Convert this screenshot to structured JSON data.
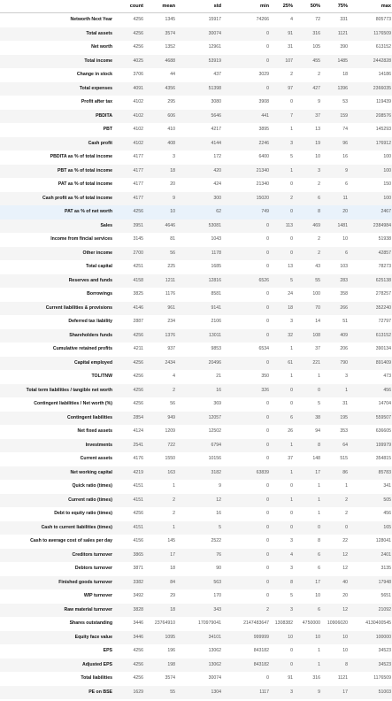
{
  "columns": [
    "count",
    "mean",
    "std",
    "min",
    "25%",
    "50%",
    "75%",
    "max"
  ],
  "rows": [
    {
      "label": "Networth Next Year",
      "v": [
        "4256",
        "1345",
        "15917",
        "74266",
        "4",
        "72",
        "331",
        "805773"
      ]
    },
    {
      "label": "Total assets",
      "v": [
        "4256",
        "3574",
        "30074",
        "0",
        "91",
        "316",
        "1121",
        "1176509"
      ]
    },
    {
      "label": "Net worth",
      "v": [
        "4256",
        "1352",
        "12961",
        "0",
        "31",
        "105",
        "390",
        "613152"
      ]
    },
    {
      "label": "Total income",
      "v": [
        "4025",
        "4688",
        "53919",
        "0",
        "107",
        "455",
        "1485",
        "2442828"
      ]
    },
    {
      "label": "Change in stock",
      "v": [
        "3706",
        "44",
        "437",
        "3029",
        "2",
        "2",
        "18",
        "14186"
      ]
    },
    {
      "label": "Total expenses",
      "v": [
        "4091",
        "4356",
        "51398",
        "0",
        "97",
        "427",
        "1396",
        "2366035"
      ]
    },
    {
      "label": "Profit after tax",
      "v": [
        "4102",
        "295",
        "3080",
        "3908",
        "0",
        "9",
        "53",
        "119439"
      ]
    },
    {
      "label": "PBDITA",
      "v": [
        "4102",
        "606",
        "5646",
        "441",
        "7",
        "37",
        "159",
        "208576"
      ]
    },
    {
      "label": "PBT",
      "v": [
        "4102",
        "410",
        "4217",
        "3895",
        "1",
        "13",
        "74",
        "145293"
      ]
    },
    {
      "label": "Cash profit",
      "v": [
        "4102",
        "408",
        "4144",
        "2246",
        "3",
        "19",
        "96",
        "176912"
      ]
    },
    {
      "label": "PBDITA as % of total income",
      "v": [
        "4177",
        "3",
        "172",
        "6400",
        "5",
        "10",
        "16",
        "100"
      ]
    },
    {
      "label": "PBT as % of total income",
      "v": [
        "4177",
        "18",
        "420",
        "21340",
        "1",
        "3",
        "9",
        "100"
      ]
    },
    {
      "label": "PAT as % of total income",
      "v": [
        "4177",
        "20",
        "424",
        "21340",
        "0",
        "2",
        "6",
        "150"
      ]
    },
    {
      "label": "Cash profit as % of total income",
      "v": [
        "4177",
        "9",
        "300",
        "15020",
        "2",
        "6",
        "11",
        "100"
      ]
    },
    {
      "label": "PAT as % of net worth",
      "v": [
        "4256",
        "10",
        "62",
        "749",
        "0",
        "8",
        "20",
        "2467"
      ]
    },
    {
      "label": "Sales",
      "v": [
        "3951",
        "4646",
        "53081",
        "0",
        "113",
        "469",
        "1481",
        "2384984"
      ]
    },
    {
      "label": "Income from fincial services",
      "v": [
        "3145",
        "81",
        "1043",
        "0",
        "0",
        "2",
        "10",
        "51938"
      ]
    },
    {
      "label": "Other income",
      "v": [
        "2700",
        "56",
        "1178",
        "0",
        "0",
        "2",
        "6",
        "42857"
      ]
    },
    {
      "label": "Total capital",
      "v": [
        "4251",
        "225",
        "1685",
        "0",
        "13",
        "43",
        "103",
        "78273"
      ]
    },
    {
      "label": "Reserves and funds",
      "v": [
        "4158",
        "1211",
        "12816",
        "6526",
        "5",
        "55",
        "283",
        "625138"
      ]
    },
    {
      "label": "Borrowings",
      "v": [
        "3825",
        "1176",
        "8581",
        "0",
        "24",
        "100",
        "358",
        "278257"
      ]
    },
    {
      "label": "Current liabilities & provisions",
      "v": [
        "4146",
        "961",
        "9141",
        "0",
        "18",
        "70",
        "266",
        "352240"
      ]
    },
    {
      "label": "Deferred tax liability",
      "v": [
        "2887",
        "234",
        "2106",
        "0",
        "3",
        "14",
        "51",
        "72797"
      ]
    },
    {
      "label": "Shareholders funds",
      "v": [
        "4256",
        "1376",
        "13011",
        "0",
        "32",
        "108",
        "409",
        "613152"
      ]
    },
    {
      "label": "Cumulative retained profits",
      "v": [
        "4211",
        "937",
        "9853",
        "6534",
        "1",
        "37",
        "206",
        "390134"
      ]
    },
    {
      "label": "Capital employed",
      "v": [
        "4256",
        "2434",
        "20496",
        "0",
        "61",
        "221",
        "790",
        "891409"
      ]
    },
    {
      "label": "TOL/TNW",
      "v": [
        "4256",
        "4",
        "21",
        "350",
        "1",
        "1",
        "3",
        "473"
      ]
    },
    {
      "label": "Total term liabilities / tangible net worth",
      "v": [
        "4256",
        "2",
        "16",
        "326",
        "0",
        "0",
        "1",
        "456"
      ]
    },
    {
      "label": "Contingent liabilities / Net worth (%)",
      "v": [
        "4256",
        "56",
        "369",
        "0",
        "0",
        "5",
        "31",
        "14704"
      ]
    },
    {
      "label": "Contingent liabilities",
      "v": [
        "2854",
        "949",
        "12057",
        "0",
        "6",
        "38",
        "195",
        "559507"
      ]
    },
    {
      "label": "Net fixed assets",
      "v": [
        "4124",
        "1209",
        "12502",
        "0",
        "26",
        "94",
        "353",
        "636605"
      ]
    },
    {
      "label": "Investments",
      "v": [
        "2541",
        "722",
        "6794",
        "0",
        "1",
        "8",
        "64",
        "199979"
      ]
    },
    {
      "label": "Current assets",
      "v": [
        "4176",
        "1550",
        "10156",
        "0",
        "37",
        "148",
        "515",
        "354815"
      ]
    },
    {
      "label": "Net working capital",
      "v": [
        "4219",
        "163",
        "3182",
        "63839",
        "1",
        "17",
        "86",
        "85783"
      ]
    },
    {
      "label": "Quick ratio (times)",
      "v": [
        "4151",
        "1",
        "9",
        "0",
        "0",
        "1",
        "1",
        "341"
      ]
    },
    {
      "label": "Current ratio (times)",
      "v": [
        "4151",
        "2",
        "12",
        "0",
        "1",
        "1",
        "2",
        "505"
      ]
    },
    {
      "label": "Debt to equity ratio (times)",
      "v": [
        "4256",
        "2",
        "16",
        "0",
        "0",
        "1",
        "2",
        "456"
      ]
    },
    {
      "label": "Cash to current liabilities (times)",
      "v": [
        "4151",
        "1",
        "5",
        "0",
        "0",
        "0",
        "0",
        "165"
      ]
    },
    {
      "label": "Cash to average cost of sales per day",
      "v": [
        "4156",
        "145",
        "2522",
        "0",
        "3",
        "8",
        "22",
        "128041"
      ]
    },
    {
      "label": "Creditors turnover",
      "v": [
        "3865",
        "17",
        "76",
        "0",
        "4",
        "6",
        "12",
        "2401"
      ]
    },
    {
      "label": "Debtors turnover",
      "v": [
        "3871",
        "18",
        "90",
        "0",
        "3",
        "6",
        "12",
        "3135"
      ]
    },
    {
      "label": "Finished goods turnover",
      "v": [
        "3382",
        "84",
        "563",
        "0",
        "8",
        "17",
        "40",
        "17948"
      ]
    },
    {
      "label": "WIP turnover",
      "v": [
        "3492",
        "29",
        "170",
        "0",
        "5",
        "10",
        "20",
        "5651"
      ]
    },
    {
      "label": "Raw material turnover",
      "v": [
        "3828",
        "18",
        "343",
        "2",
        "3",
        "6",
        "12",
        "21092"
      ]
    },
    {
      "label": "Shares outstanding",
      "v": [
        "3446",
        "23764910",
        "170979041",
        "2147483647",
        "1308382",
        "4750000",
        "10906020",
        "4130400545"
      ]
    },
    {
      "label": "Equity face value",
      "v": [
        "3446",
        "1095",
        "34101",
        "999999",
        "10",
        "10",
        "10",
        "100000"
      ]
    },
    {
      "label": "EPS",
      "v": [
        "4256",
        "196",
        "13062",
        "843182",
        "0",
        "1",
        "10",
        "34523"
      ]
    },
    {
      "label": "Adjusted EPS",
      "v": [
        "4256",
        "198",
        "13062",
        "843182",
        "0",
        "1",
        "8",
        "34523"
      ]
    },
    {
      "label": "Total liabilities",
      "v": [
        "4256",
        "3574",
        "30074",
        "0",
        "91",
        "316",
        "1121",
        "1176509"
      ]
    },
    {
      "label": "PE on BSE",
      "v": [
        "1629",
        "55",
        "1304",
        "1117",
        "3",
        "9",
        "17",
        "51003"
      ]
    }
  ]
}
